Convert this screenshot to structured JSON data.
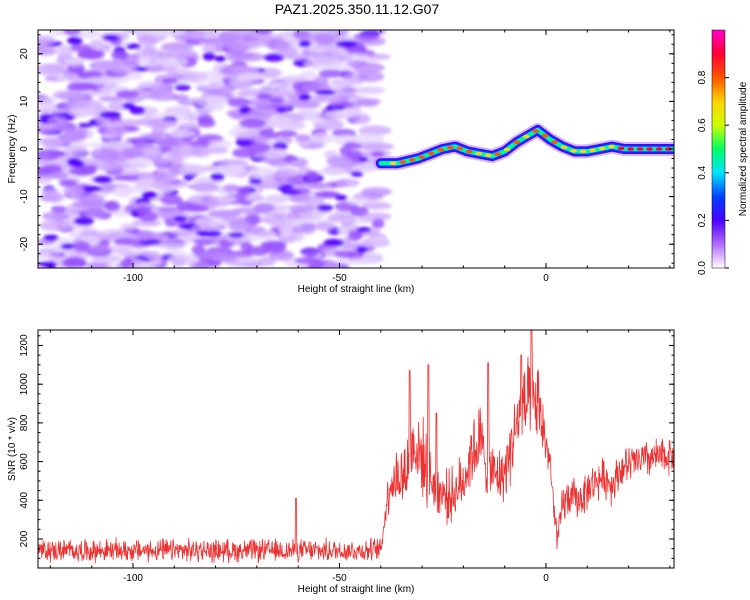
{
  "title": "PAZ1.2025.350.11.12.G07",
  "chart_data": [
    {
      "type": "heatmap",
      "title": "PAZ1.2025.350.11.12.G07",
      "xlabel": "Height of straight line (km)",
      "ylabel": "Frequency (Hz)",
      "xlim": [
        -123,
        31
      ],
      "ylim": [
        -25,
        25
      ],
      "x_ticks": [
        -100,
        -50,
        0
      ],
      "x_tick_labels": [
        "-100",
        "-50",
        "0"
      ],
      "y_ticks": [
        20,
        10,
        0,
        -10,
        -20
      ],
      "y_tick_labels": [
        "20",
        "10",
        "0",
        "-10",
        "-20"
      ],
      "noise_region_x": [
        -123,
        -40
      ],
      "signal_trace": {
        "x": [
          -40,
          -36,
          -31,
          -28,
          -25,
          -22,
          -19,
          -16,
          -13,
          -10,
          -7,
          -4,
          -2,
          1,
          4,
          7,
          10,
          13,
          16,
          19,
          22,
          25,
          28,
          31
        ],
        "frequency": [
          -3,
          -3,
          -2,
          -1,
          0,
          0.5,
          -0.5,
          -1,
          -1.5,
          -0.5,
          1.5,
          3,
          4,
          2,
          0.5,
          -0.5,
          -0.5,
          0,
          0.5,
          0,
          0,
          0,
          0,
          0
        ]
      },
      "colorbar": {
        "label": "Normalized spectral amplitude",
        "range": [
          0,
          1
        ],
        "ticks": [
          0.0,
          0.2,
          0.4,
          0.6,
          0.8
        ],
        "tick_labels": [
          "0.0",
          "0.2",
          "0.4",
          "0.6",
          "0.8"
        ],
        "colors": [
          "#ffffff",
          "#b36bff",
          "#4a00ff",
          "#0040ff",
          "#00e5ff",
          "#00ff66",
          "#ccff00",
          "#ffd400",
          "#ff5500",
          "#ff0033",
          "#ff00cc"
        ]
      },
      "grid": false
    },
    {
      "type": "line",
      "xlabel": "Height of straight line (km)",
      "ylabel": "SNR (10 * v/v)",
      "xlim": [
        -123,
        31
      ],
      "ylim": [
        50,
        1280
      ],
      "x_ticks": [
        -100,
        -50,
        0
      ],
      "x_tick_labels": [
        "-100",
        "-50",
        "0"
      ],
      "y_ticks": [
        200,
        400,
        600,
        800,
        1000,
        1200
      ],
      "y_tick_labels": [
        "200",
        "400",
        "600",
        "800",
        "1000",
        "1200"
      ],
      "series": [
        {
          "name": "SNR",
          "color": "#ee3030",
          "x": [
            -123,
            -110,
            -100,
            -90,
            -80,
            -70,
            -60,
            -50,
            -45,
            -40,
            -38,
            -36,
            -34,
            -32,
            -30,
            -28,
            -26,
            -24,
            -22,
            -20,
            -18,
            -16,
            -14,
            -12,
            -10,
            -8,
            -6,
            -4,
            -2,
            0,
            1,
            2,
            3,
            4,
            6,
            8,
            10,
            12,
            14,
            16,
            18,
            20,
            22,
            24,
            26,
            28,
            30,
            31
          ],
          "values": [
            140,
            140,
            140,
            140,
            140,
            140,
            140,
            140,
            140,
            145,
            480,
            520,
            540,
            700,
            620,
            520,
            450,
            420,
            440,
            500,
            650,
            700,
            580,
            520,
            540,
            720,
            860,
            900,
            900,
            700,
            600,
            300,
            200,
            380,
            420,
            400,
            450,
            500,
            520,
            480,
            560,
            580,
            600,
            610,
            620,
            620,
            640,
            640
          ],
          "noise_amplitude": [
            70,
            70,
            70,
            70,
            70,
            70,
            70,
            70,
            70,
            70,
            150,
            200,
            220,
            250,
            250,
            200,
            180,
            160,
            170,
            180,
            220,
            250,
            200,
            160,
            180,
            220,
            250,
            270,
            250,
            150,
            130,
            120,
            100,
            130,
            120,
            120,
            120,
            120,
            120,
            120,
            120,
            120,
            120,
            120,
            120,
            120,
            120,
            120
          ],
          "peaks": [
            {
              "x": -33.0,
              "y": 1070
            },
            {
              "x": -28.5,
              "y": 1100
            },
            {
              "x": -26.5,
              "y": 850
            },
            {
              "x": -14.0,
              "y": 1110
            },
            {
              "x": -6.0,
              "y": 1150
            },
            {
              "x": -3.5,
              "y": 1280
            },
            {
              "x": -60.5,
              "y": 410
            }
          ]
        }
      ],
      "grid": false
    }
  ]
}
